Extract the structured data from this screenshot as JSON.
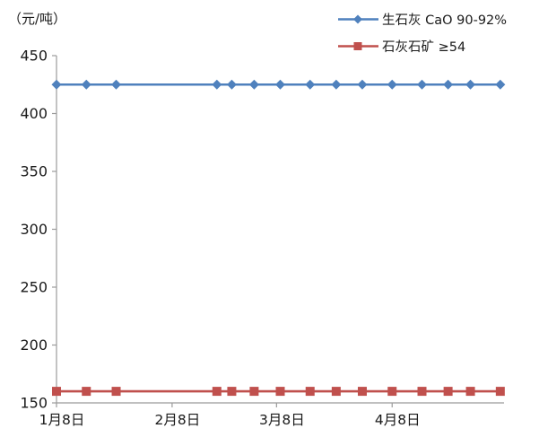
{
  "unit_label": "（元/吨）",
  "colors": {
    "series1_blue": "#4F81BD",
    "series2_red": "#C0504D",
    "axis": "#9b9b9b",
    "text": "#1a1a1a",
    "background": "#FFFFFF"
  },
  "legend": [
    {
      "label": "生石灰 CaO 90-92%",
      "color": "#4F81BD",
      "marker": "diamond"
    },
    {
      "label": "石灰石矿 ≥54",
      "color": "#C0504D",
      "marker": "square"
    }
  ],
  "chart_data": {
    "type": "line",
    "title": "",
    "xlabel": "",
    "ylabel": "（元/吨）",
    "grid": false,
    "legend_position": "top-right",
    "x_axis": {
      "tick_labels": [
        "1月8日",
        "2月8日",
        "3月8日",
        "4月8日"
      ],
      "tick_day_offsets": [
        0,
        31,
        59,
        90
      ],
      "range_days": [
        0,
        120
      ]
    },
    "y_axis": {
      "ticks": [
        150,
        200,
        250,
        300,
        350,
        400,
        450
      ],
      "range": [
        150,
        450
      ]
    },
    "x_day_offsets_from_first_tick": [
      0,
      8,
      16,
      43,
      47,
      53,
      60,
      68,
      75,
      82,
      90,
      98,
      105,
      111,
      119
    ],
    "series": [
      {
        "name": "生石灰 CaO 90-92%",
        "marker": "diamond",
        "color": "#4F81BD",
        "values": [
          425,
          425,
          425,
          425,
          425,
          425,
          425,
          425,
          425,
          425,
          425,
          425,
          425,
          425,
          425
        ]
      },
      {
        "name": "石灰石矿 ≥54",
        "marker": "square",
        "color": "#C0504D",
        "values": [
          160,
          160,
          160,
          160,
          160,
          160,
          160,
          160,
          160,
          160,
          160,
          160,
          160,
          160,
          160
        ]
      }
    ]
  }
}
